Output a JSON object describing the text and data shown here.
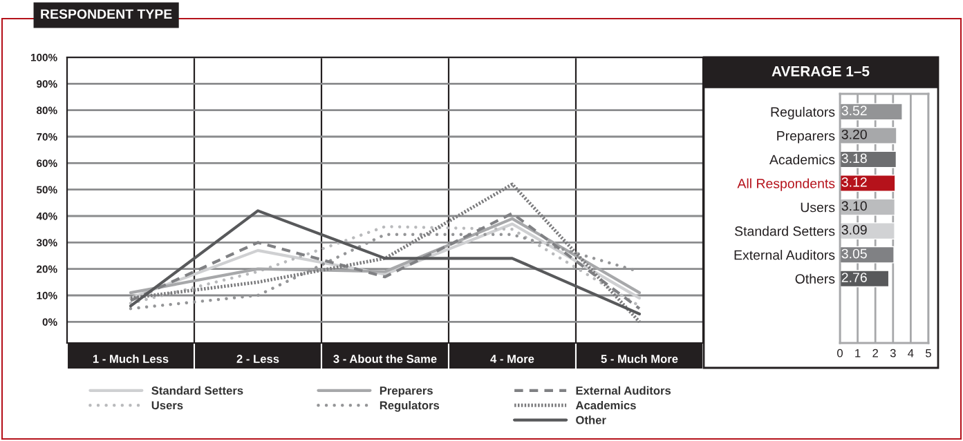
{
  "chart_data": [
    {
      "type": "line",
      "title": "RESPONDENT TYPE",
      "categories": [
        "1 - Much Less",
        "2 - Less",
        "3 - About the Same",
        "4 - More",
        "5 - Much More"
      ],
      "series": [
        {
          "name": "Standard Setters",
          "color": "#cfd0d2",
          "line_style": "solid",
          "values": [
            9,
            27,
            18,
            37,
            9
          ]
        },
        {
          "name": "Users",
          "color": "#b9babc",
          "line_style": "dotted",
          "values": [
            7,
            19,
            36,
            35,
            6
          ]
        },
        {
          "name": "Preparers",
          "color": "#a7a8aa",
          "line_style": "solid",
          "values": [
            11,
            20,
            19,
            39,
            11
          ]
        },
        {
          "name": "Regulators",
          "color": "#949597",
          "line_style": "dotted",
          "values": [
            5,
            10,
            33,
            33,
            19
          ]
        },
        {
          "name": "External Auditors",
          "color": "#808184",
          "line_style": "dashed",
          "values": [
            8,
            30,
            17,
            41,
            5
          ]
        },
        {
          "name": "Academics",
          "color": "#7a7a7c",
          "line_style": "hatched",
          "values": [
            9,
            15,
            24,
            52,
            0
          ]
        },
        {
          "name": "Other",
          "color": "#58595b",
          "line_style": "solid",
          "values": [
            6,
            42,
            24,
            24,
            3
          ]
        }
      ],
      "ylim": [
        -8,
        100
      ],
      "yticks": [
        {
          "value": 0,
          "label": "0%"
        },
        {
          "value": 10,
          "label": "10%"
        },
        {
          "value": 20,
          "label": "20%"
        },
        {
          "value": 30,
          "label": "30%"
        },
        {
          "value": 40,
          "label": "40%"
        },
        {
          "value": 50,
          "label": "50%"
        },
        {
          "value": 60,
          "label": "60%"
        },
        {
          "value": 70,
          "label": "70%"
        },
        {
          "value": 80,
          "label": "80%"
        },
        {
          "value": 90,
          "label": "90%"
        },
        {
          "value": 100,
          "label": "100%"
        }
      ],
      "grid": "y",
      "legend": "bottom",
      "marker": "none"
    },
    {
      "type": "bar",
      "orientation": "horizontal",
      "title": "AVERAGE 1–5",
      "categories": [
        "Regulators",
        "Preparers",
        "Academics",
        "All Respondents",
        "Users",
        "Standard Setters",
        "External Auditors",
        "Others"
      ],
      "values": [
        3.52,
        3.2,
        3.18,
        3.12,
        3.1,
        3.09,
        3.05,
        2.76
      ],
      "colors": [
        "#939496",
        "#a7a8aa",
        "#6d6e70",
        "#b5121b",
        "#bbbcbe",
        "#d1d2d4",
        "#808184",
        "#58595b"
      ],
      "value_labels": [
        "3.52",
        "3.20",
        "3.18",
        "3.12",
        "3.10",
        "3.09",
        "3.05",
        "2.76"
      ],
      "xlim": [
        0,
        5
      ],
      "xticks": [
        0,
        1,
        2,
        3,
        4,
        5
      ],
      "grid": "x"
    }
  ]
}
